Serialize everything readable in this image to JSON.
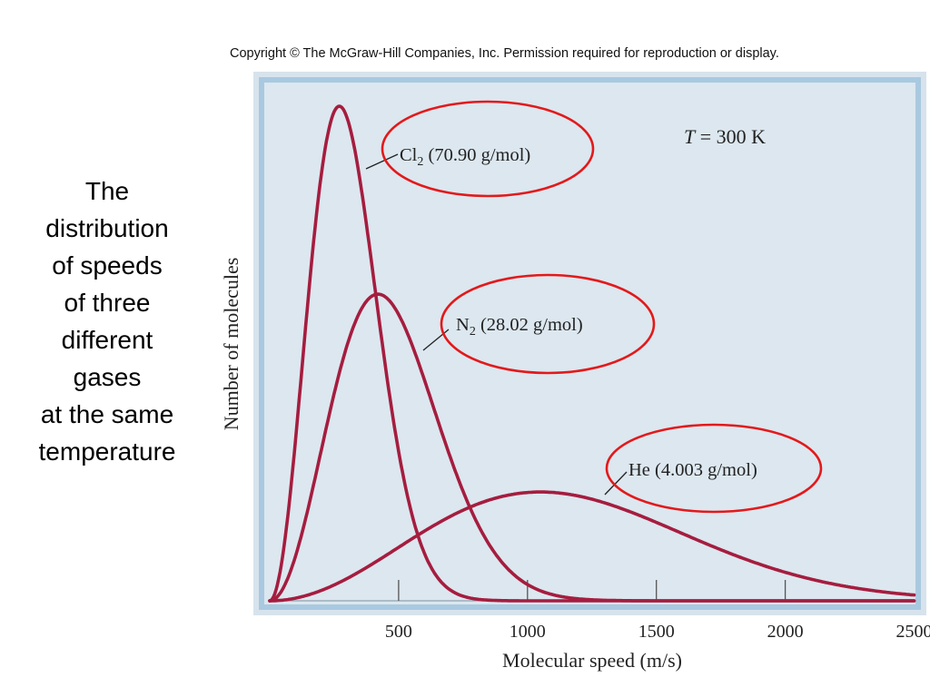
{
  "copyright": "Copyright © The McGraw-Hill Companies, Inc. Permission required for reproduction or display.",
  "caption_lines": [
    "The",
    "distribution",
    "of speeds",
    "of three",
    "different",
    "gases",
    "at the same",
    "temperature"
  ],
  "colors": {
    "curve": "#a51d3f",
    "circle": "#e3191b",
    "panel_fill": "#dce7ef",
    "panel_border": "#9fc2dc"
  },
  "chart_data": {
    "type": "line",
    "title": "",
    "annotation": {
      "italic": "T",
      "rest": " = 300 K"
    },
    "xlabel": "Molecular speed (m/s)",
    "ylabel": "Number of molecules",
    "xlim": [
      0,
      2500
    ],
    "xticks": [
      500,
      1000,
      1500,
      2000,
      2500
    ],
    "series": [
      {
        "label_main": "Cl",
        "label_sub": "2",
        "label_rest": " (70.90 g/mol)",
        "peak_speed": 270,
        "relative_peak": 1.0
      },
      {
        "label_main": "N",
        "label_sub": "2",
        "label_rest": " (28.02 g/mol)",
        "peak_speed": 420,
        "relative_peak": 0.62
      },
      {
        "label_main": "He",
        "label_sub": "",
        "label_rest": " (4.003 g/mol)",
        "peak_speed": 1050,
        "relative_peak": 0.22
      }
    ]
  }
}
